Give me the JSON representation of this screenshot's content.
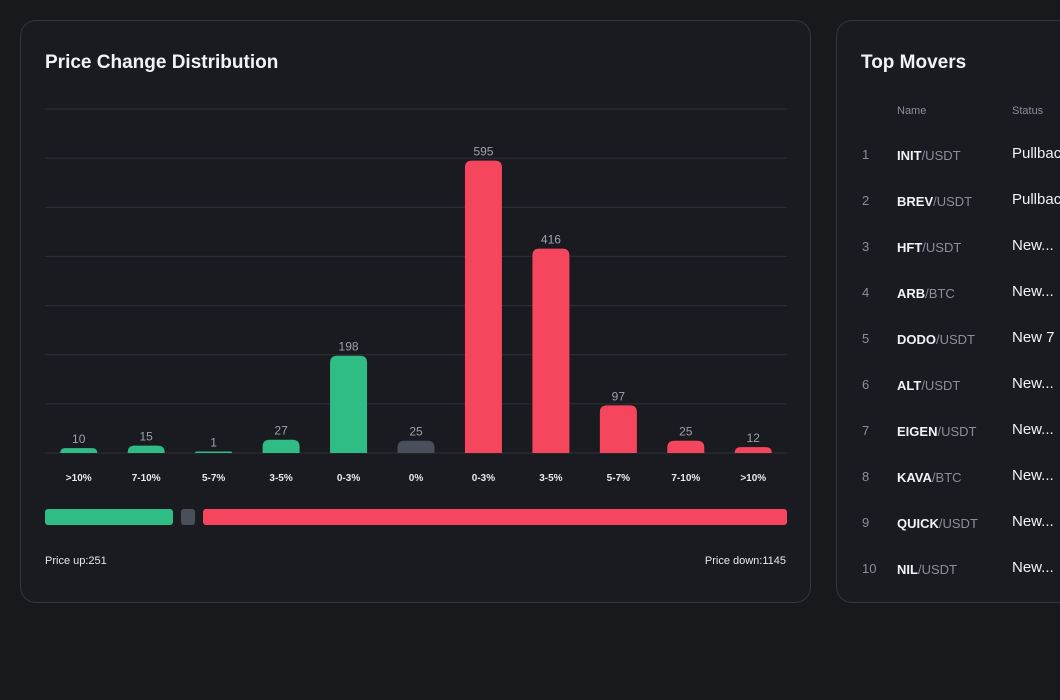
{
  "distribution": {
    "title": "Price Change Distribution",
    "price_up_label": "Price up:",
    "price_up_value": 251,
    "price_down_label": "Price down:",
    "price_down_value": 1145,
    "price_up_text": "Price up:251",
    "price_down_text": "Price down:1145",
    "colors": {
      "up": "#2fbd85",
      "flat": "#4a4f5c",
      "down": "#f6465d",
      "grid": "#2e3039"
    }
  },
  "chart_data": {
    "type": "bar",
    "title": "Price Change Distribution",
    "categories": [
      ">10%",
      "7-10%",
      "5-7%",
      "3-5%",
      "0-3%",
      "0%",
      "0-3%",
      "3-5%",
      "5-7%",
      "7-10%",
      ">10%"
    ],
    "values": [
      10,
      15,
      1,
      27,
      198,
      25,
      595,
      416,
      97,
      25,
      12
    ],
    "directions": [
      "up",
      "up",
      "up",
      "up",
      "up",
      "flat",
      "down",
      "down",
      "down",
      "down",
      "down"
    ],
    "xlabel": "",
    "ylabel": "",
    "ylim": [
      0,
      700
    ],
    "grid": true
  },
  "movers": {
    "title": "Top Movers",
    "headers": {
      "name": "Name",
      "status": "Status"
    },
    "rows": [
      {
        "rank": "1",
        "base": "INIT",
        "quote": "/USDT",
        "status": "Pullback"
      },
      {
        "rank": "2",
        "base": "BREV",
        "quote": "/USDT",
        "status": "Pullback"
      },
      {
        "rank": "3",
        "base": "HFT",
        "quote": "/USDT",
        "status": "New..."
      },
      {
        "rank": "4",
        "base": "ARB",
        "quote": "/BTC",
        "status": "New..."
      },
      {
        "rank": "5",
        "base": "DODO",
        "quote": "/USDT",
        "status": "New 7"
      },
      {
        "rank": "6",
        "base": "ALT",
        "quote": "/USDT",
        "status": "New..."
      },
      {
        "rank": "7",
        "base": "EIGEN",
        "quote": "/USDT",
        "status": "New..."
      },
      {
        "rank": "8",
        "base": "KAVA",
        "quote": "/BTC",
        "status": "New..."
      },
      {
        "rank": "9",
        "base": "QUICK",
        "quote": "/USDT",
        "status": "New..."
      },
      {
        "rank": "10",
        "base": "NIL",
        "quote": "/USDT",
        "status": "New..."
      }
    ]
  }
}
